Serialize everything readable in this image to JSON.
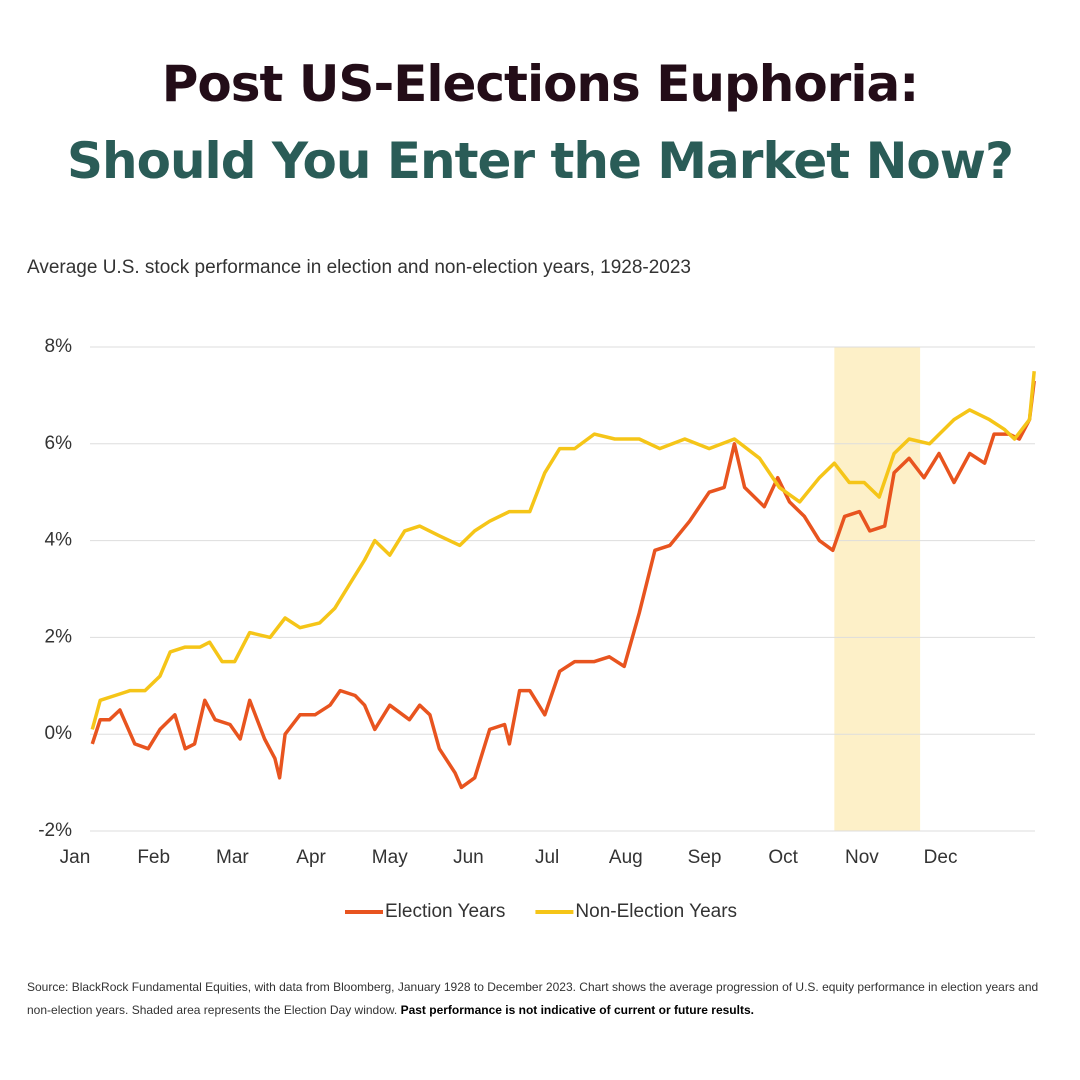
{
  "header": {
    "title_line1": "Post US-Elections Euphoria:",
    "title_line2": "Should You Enter the Market Now?"
  },
  "chart_data": {
    "type": "line",
    "title": "Average U.S. stock performance in election and non-election years, 1928-2023",
    "xlim": [
      0,
      12.2
    ],
    "xticks": [
      {
        "value": 0,
        "label": "Jan"
      },
      {
        "value": 1,
        "label": "Feb"
      },
      {
        "value": 2,
        "label": "Mar"
      },
      {
        "value": 3,
        "label": "Apr"
      },
      {
        "value": 4,
        "label": "May"
      },
      {
        "value": 5,
        "label": "Jun"
      },
      {
        "value": 6,
        "label": "Jul"
      },
      {
        "value": 7,
        "label": "Aug"
      },
      {
        "value": 8,
        "label": "Sep"
      },
      {
        "value": 9,
        "label": "Oct"
      },
      {
        "value": 10,
        "label": "Nov"
      },
      {
        "value": 11,
        "label": "Dec"
      }
    ],
    "ylim": [
      -2,
      8
    ],
    "yticks": [
      {
        "value": -2,
        "label": "-2%"
      },
      {
        "value": 0,
        "label": "0%"
      },
      {
        "value": 2,
        "label": "2%"
      },
      {
        "value": 4,
        "label": "4%"
      },
      {
        "value": 6,
        "label": "6%"
      },
      {
        "value": 8,
        "label": "8%"
      }
    ],
    "grid": true,
    "shaded_x": [
      9.65,
      10.74
    ],
    "shaded_color": "#fdf0c8",
    "legend": "bottom",
    "series": [
      {
        "name": "Election Years",
        "color": "#e8541f",
        "x": [
          0.22,
          0.32,
          0.44,
          0.57,
          0.76,
          0.93,
          1.08,
          1.27,
          1.4,
          1.52,
          1.65,
          1.78,
          1.97,
          2.1,
          2.22,
          2.41,
          2.54,
          2.6,
          2.67,
          2.86,
          3.05,
          3.24,
          3.37,
          3.56,
          3.68,
          3.81,
          4.0,
          4.25,
          4.38,
          4.51,
          4.63,
          4.83,
          4.91,
          5.08,
          5.27,
          5.46,
          5.52,
          5.65,
          5.78,
          5.97,
          6.16,
          6.35,
          6.6,
          6.79,
          6.98,
          7.17,
          7.37,
          7.56,
          7.81,
          8.06,
          8.25,
          8.38,
          8.51,
          8.76,
          8.93,
          9.08,
          9.27,
          9.46,
          9.63,
          9.78,
          9.97,
          10.1,
          10.29,
          10.41,
          10.6,
          10.79,
          10.98,
          11.17,
          11.37,
          11.56,
          11.68,
          11.87,
          12.0,
          12.13,
          12.19
        ],
        "values": [
          -0.2,
          0.3,
          0.3,
          0.5,
          -0.2,
          -0.3,
          0.1,
          0.4,
          -0.3,
          -0.2,
          0.7,
          0.3,
          0.2,
          -0.1,
          0.7,
          -0.1,
          -0.5,
          -0.9,
          0,
          0.4,
          0.4,
          0.6,
          0.9,
          0.8,
          0.6,
          0.1,
          0.6,
          0.3,
          0.6,
          0.4,
          -0.3,
          -0.8,
          -1.1,
          -0.9,
          0.1,
          0.2,
          -0.2,
          0.9,
          0.9,
          0.4,
          1.3,
          1.5,
          1.5,
          1.6,
          1.4,
          2.5,
          3.8,
          3.9,
          4.4,
          5.0,
          5.1,
          6.0,
          5.1,
          4.7,
          5.3,
          4.8,
          4.5,
          4.0,
          3.8,
          4.5,
          4.6,
          4.2,
          4.3,
          5.4,
          5.7,
          5.3,
          5.8,
          5.2,
          5.8,
          5.6,
          6.2,
          6.2,
          6.1,
          6.5,
          7.3
        ]
      },
      {
        "name": "Non-Election Years",
        "color": "#f5c518",
        "x": [
          0.22,
          0.32,
          0.51,
          0.7,
          0.89,
          1.08,
          1.21,
          1.4,
          1.59,
          1.71,
          1.87,
          2.03,
          2.22,
          2.48,
          2.67,
          2.86,
          3.11,
          3.3,
          3.49,
          3.68,
          3.81,
          4.0,
          4.19,
          4.38,
          4.63,
          4.89,
          5.08,
          5.27,
          5.52,
          5.78,
          5.97,
          6.16,
          6.35,
          6.6,
          6.86,
          7.17,
          7.43,
          7.75,
          8.06,
          8.38,
          8.7,
          8.95,
          9.21,
          9.46,
          9.65,
          9.84,
          10.03,
          10.22,
          10.41,
          10.6,
          10.86,
          11.17,
          11.37,
          11.62,
          11.81,
          11.94,
          12.13,
          12.19
        ],
        "values": [
          0.1,
          0.7,
          0.8,
          0.9,
          0.9,
          1.2,
          1.7,
          1.8,
          1.8,
          1.9,
          1.5,
          1.5,
          2.1,
          2.0,
          2.4,
          2.2,
          2.3,
          2.6,
          3.1,
          3.6,
          4.0,
          3.7,
          4.2,
          4.3,
          4.1,
          3.9,
          4.2,
          4.4,
          4.6,
          4.6,
          5.4,
          5.9,
          5.9,
          6.2,
          6.1,
          6.1,
          5.9,
          6.1,
          5.9,
          6.1,
          5.7,
          5.1,
          4.8,
          5.3,
          5.6,
          5.2,
          5.2,
          4.9,
          5.8,
          6.1,
          6.0,
          6.5,
          6.7,
          6.5,
          6.3,
          6.1,
          6.5,
          7.5
        ]
      }
    ],
    "note": "Source: BlackRock Fundamental Equities, with data from Bloomberg, January 1928 to December 2023. Chart shows the average progression of U.S. equity performance in election years and non-election years. Shaded area represents the Election Day window. ",
    "note_bold": "Past performance is not indicative of current or future results."
  }
}
